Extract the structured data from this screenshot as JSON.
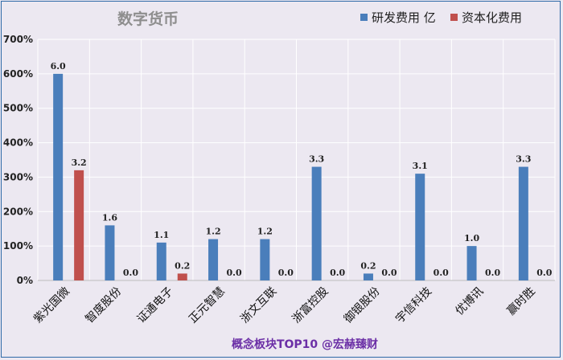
{
  "chart_data": {
    "type": "bar",
    "title": "数字货币",
    "categories": [
      "紫光国微",
      "智度股份",
      "证通电子",
      "正元智慧",
      "浙文互联",
      "浙富控股",
      "御银股份",
      "宇信科技",
      "优博讯",
      "赢时胜"
    ],
    "series": [
      {
        "name": "研发费用 亿",
        "color": "#4a7ebb",
        "values": [
          6.0,
          1.6,
          1.1,
          1.2,
          1.2,
          3.3,
          0.2,
          3.1,
          1.0,
          3.3
        ]
      },
      {
        "name": "资本化费用",
        "color": "#c0504d",
        "values": [
          3.2,
          0.0,
          0.2,
          0.0,
          0.0,
          0.0,
          0.0,
          0.0,
          0.0,
          0.0
        ]
      }
    ],
    "data_labels": [
      [
        "6.0",
        "1.6",
        "1.1",
        "1.2",
        "1.2",
        "3.3",
        "0.2",
        "3.1",
        "1.0",
        "3.3"
      ],
      [
        "3.2",
        "0.0",
        "0.2",
        "0.0",
        "0.0",
        "0.0",
        "0.0",
        "0.0",
        "0.0",
        "0.0"
      ]
    ],
    "y_ticks": [
      "0%",
      "100%",
      "200%",
      "300%",
      "400%",
      "500%",
      "600%",
      "700%"
    ],
    "ylim": [
      0,
      7
    ],
    "grid": true,
    "legend_position": "top-right",
    "xlabel": "",
    "ylabel": ""
  },
  "footer": "概念板块TOP10  @宏赫臻财"
}
